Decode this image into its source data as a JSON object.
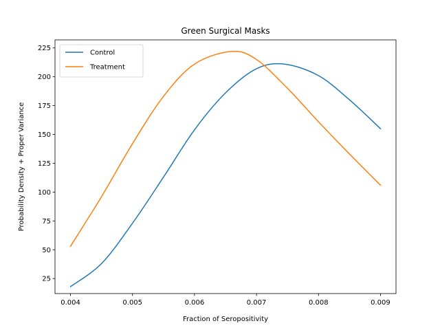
{
  "chart_data": {
    "type": "line",
    "title": "Green Surgical Masks",
    "xlabel": "Fraction of Seropositivity",
    "ylabel": "Probability Density + Proper Variance",
    "xlim": [
      0.00375,
      0.00925
    ],
    "ylim": [
      12,
      232
    ],
    "xticks": [
      0.004,
      0.005,
      0.006,
      0.007,
      0.008,
      0.009
    ],
    "xtick_labels": [
      "0.004",
      "0.005",
      "0.006",
      "0.007",
      "0.008",
      "0.009"
    ],
    "yticks": [
      25,
      50,
      75,
      100,
      125,
      150,
      175,
      200,
      225
    ],
    "ytick_labels": [
      "25",
      "50",
      "75",
      "100",
      "125",
      "150",
      "175",
      "200",
      "225"
    ],
    "grid": false,
    "legend_position": "top-left",
    "series": [
      {
        "name": "Control",
        "color": "#1f77b4",
        "x": [
          0.004,
          0.0045,
          0.005,
          0.0055,
          0.006,
          0.0065,
          0.007,
          0.00745,
          0.008,
          0.0085,
          0.009
        ],
        "y": [
          18,
          38,
          73,
          113,
          154,
          186,
          207,
          211,
          201,
          180,
          155
        ]
      },
      {
        "name": "Treatment",
        "color": "#ff7f0e",
        "x": [
          0.004,
          0.0045,
          0.005,
          0.0055,
          0.006,
          0.0066,
          0.007,
          0.0075,
          0.008,
          0.0085,
          0.009
        ],
        "y": [
          53,
          96,
          142,
          183,
          211,
          222,
          215,
          190,
          161,
          133,
          106
        ]
      }
    ]
  }
}
